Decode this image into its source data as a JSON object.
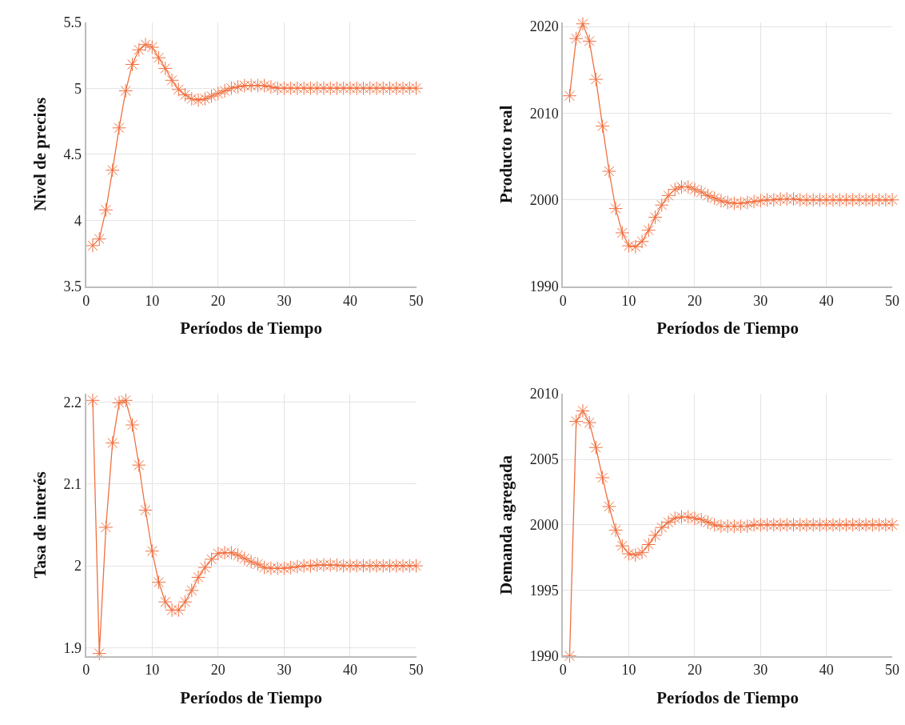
{
  "chart_data": [
    {
      "type": "line",
      "xlabel": "Períodos de Tiempo",
      "ylabel": "Nivel de precios",
      "xlim": [
        0,
        50
      ],
      "xticks": [
        0,
        10,
        20,
        30,
        40,
        50
      ],
      "ylim": [
        3.5,
        5.5
      ],
      "yticks": [
        3.5,
        4,
        4.5,
        5,
        5.5
      ],
      "grid": true,
      "marker": "cross",
      "line_style": "solid",
      "x": [
        1,
        2,
        3,
        4,
        5,
        6,
        7,
        8,
        9,
        10,
        11,
        12,
        13,
        14,
        15,
        16,
        17,
        18,
        19,
        20,
        21,
        22,
        23,
        24,
        25,
        26,
        27,
        28,
        29,
        30,
        31,
        32,
        33,
        34,
        35,
        36,
        37,
        38,
        39,
        40,
        41,
        42,
        43,
        44,
        45,
        46,
        47,
        48,
        49,
        50
      ],
      "series": [
        {
          "color": "#f07040",
          "values": [
            3.81,
            3.86,
            4.08,
            4.38,
            4.7,
            4.98,
            5.18,
            5.29,
            5.33,
            5.31,
            5.23,
            5.15,
            5.06,
            4.99,
            4.95,
            4.92,
            4.91,
            4.92,
            4.94,
            4.96,
            4.98,
            5.0,
            5.01,
            5.02,
            5.02,
            5.02,
            5.02,
            5.01,
            5.0,
            5.0,
            5.0,
            5.0,
            5.0,
            5.0,
            5.0,
            5.0,
            5.0,
            5.0,
            5.0,
            5.0,
            5.0,
            5.0,
            5.0,
            5.0,
            5.0,
            5.0,
            5.0,
            5.0,
            5.0,
            5.0
          ]
        }
      ]
    },
    {
      "type": "line",
      "xlabel": "Períodos de Tiempo",
      "ylabel": "Producto real",
      "xlim": [
        0,
        50
      ],
      "xticks": [
        0,
        10,
        20,
        30,
        40,
        50
      ],
      "ylim": [
        1990,
        2020.5
      ],
      "yticks": [
        1990,
        2000,
        2010,
        2020
      ],
      "grid": true,
      "marker": "cross",
      "line_style": "solid",
      "x": [
        1,
        2,
        3,
        4,
        5,
        6,
        7,
        8,
        9,
        10,
        11,
        12,
        13,
        14,
        15,
        16,
        17,
        18,
        19,
        20,
        21,
        22,
        23,
        24,
        25,
        26,
        27,
        28,
        29,
        30,
        31,
        32,
        33,
        34,
        35,
        36,
        37,
        38,
        39,
        40,
        41,
        42,
        43,
        44,
        45,
        46,
        47,
        48,
        49,
        50
      ],
      "series": [
        {
          "color": "#f07040",
          "values": [
            2012.0,
            2018.6,
            2020.3,
            2018.3,
            2013.9,
            2008.5,
            2003.3,
            1999.0,
            1996.2,
            1994.7,
            1994.6,
            1995.2,
            1996.5,
            1998.0,
            1999.4,
            2000.5,
            2001.2,
            2001.5,
            2001.5,
            2001.2,
            2000.9,
            2000.5,
            2000.2,
            1999.9,
            1999.7,
            1999.6,
            1999.6,
            1999.7,
            1999.8,
            1999.9,
            2000.0,
            2000.0,
            2000.1,
            2000.1,
            2000.1,
            2000.0,
            2000.0,
            2000.0,
            2000.0,
            2000.0,
            2000.0,
            2000.0,
            2000.0,
            2000.0,
            2000.0,
            2000.0,
            2000.0,
            2000.0,
            2000.0,
            2000.0
          ]
        }
      ]
    },
    {
      "type": "line",
      "xlabel": "Períodos de Tiempo",
      "ylabel": "Tasa de interés",
      "xlim": [
        0,
        50
      ],
      "xticks": [
        0,
        10,
        20,
        30,
        40,
        50
      ],
      "ylim": [
        1.89,
        2.21
      ],
      "yticks": [
        1.9,
        2,
        2.1,
        2.2
      ],
      "grid": true,
      "marker": "cross",
      "line_style": "solid",
      "x": [
        1,
        2,
        3,
        4,
        5,
        6,
        7,
        8,
        9,
        10,
        11,
        12,
        13,
        14,
        15,
        16,
        17,
        18,
        19,
        20,
        21,
        22,
        23,
        24,
        25,
        26,
        27,
        28,
        29,
        30,
        31,
        32,
        33,
        34,
        35,
        36,
        37,
        38,
        39,
        40,
        41,
        42,
        43,
        44,
        45,
        46,
        47,
        48,
        49,
        50
      ],
      "series": [
        {
          "color": "#f07040",
          "values": [
            2.202,
            1.893,
            2.047,
            2.15,
            2.199,
            2.202,
            2.172,
            2.123,
            2.068,
            2.018,
            1.98,
            1.956,
            1.946,
            1.946,
            1.956,
            1.97,
            1.986,
            1.998,
            2.008,
            2.015,
            2.016,
            2.016,
            2.013,
            2.009,
            2.005,
            2.002,
            1.998,
            1.997,
            1.997,
            1.997,
            1.998,
            1.999,
            2.0,
            2.0,
            2.001,
            2.001,
            2.001,
            2.001,
            2.0,
            2.0,
            2.0,
            2.0,
            2.0,
            2.0,
            2.0,
            2.0,
            2.0,
            2.0,
            2.0,
            2.0
          ]
        }
      ]
    },
    {
      "type": "line",
      "xlabel": "Períodos de Tiempo",
      "ylabel": "Demanda agregada",
      "xlim": [
        0,
        50
      ],
      "xticks": [
        0,
        10,
        20,
        30,
        40,
        50
      ],
      "ylim": [
        1990,
        2010
      ],
      "yticks": [
        1990,
        1995,
        2000,
        2005,
        2010
      ],
      "grid": true,
      "marker": "cross",
      "line_style": "solid",
      "x": [
        1,
        2,
        3,
        4,
        5,
        6,
        7,
        8,
        9,
        10,
        11,
        12,
        13,
        14,
        15,
        16,
        17,
        18,
        19,
        20,
        21,
        22,
        23,
        24,
        25,
        26,
        27,
        28,
        29,
        30,
        31,
        32,
        33,
        34,
        35,
        36,
        37,
        38,
        39,
        40,
        41,
        42,
        43,
        44,
        45,
        46,
        47,
        48,
        49,
        50
      ],
      "series": [
        {
          "color": "#f07040",
          "values": [
            1990.0,
            2007.9,
            2008.7,
            2007.8,
            2005.9,
            2003.6,
            2001.4,
            1999.6,
            1998.4,
            1997.8,
            1997.7,
            1997.9,
            1998.5,
            1999.2,
            1999.8,
            2000.2,
            2000.5,
            2000.6,
            2000.6,
            2000.5,
            2000.4,
            2000.2,
            2000.0,
            1999.9,
            1999.9,
            1999.9,
            1999.9,
            1999.9,
            2000.0,
            2000.0,
            2000.0,
            2000.0,
            2000.0,
            2000.0,
            2000.0,
            2000.0,
            2000.0,
            2000.0,
            2000.0,
            2000.0,
            2000.0,
            2000.0,
            2000.0,
            2000.0,
            2000.0,
            2000.0,
            2000.0,
            2000.0,
            2000.0,
            2000.0
          ]
        }
      ]
    }
  ]
}
